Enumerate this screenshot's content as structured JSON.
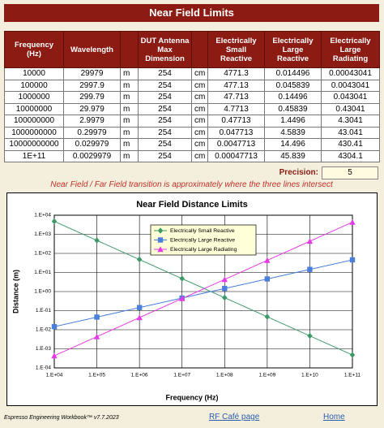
{
  "header": {
    "title": "Near Field Limits"
  },
  "table": {
    "columns": [
      "Frequency (Hz)",
      "Wavelength",
      "",
      "DUT Antenna Max Dimension",
      "",
      "Electrically Small Reactive",
      "Electrically Large Reactive",
      "Electrically Large Radiating"
    ],
    "rows": [
      [
        "10000",
        "29979",
        "m",
        "254",
        "cm",
        "4771.3",
        "0.014496",
        "0.00043041"
      ],
      [
        "100000",
        "2997.9",
        "m",
        "254",
        "cm",
        "477.13",
        "0.045839",
        "0.0043041"
      ],
      [
        "1000000",
        "299.79",
        "m",
        "254",
        "cm",
        "47.713",
        "0.14496",
        "0.043041"
      ],
      [
        "10000000",
        "29.979",
        "m",
        "254",
        "cm",
        "4.7713",
        "0.45839",
        "0.43041"
      ],
      [
        "100000000",
        "2.9979",
        "m",
        "254",
        "cm",
        "0.47713",
        "1.4496",
        "4.3041"
      ],
      [
        "1000000000",
        "0.29979",
        "m",
        "254",
        "cm",
        "0.047713",
        "4.5839",
        "43.041"
      ],
      [
        "10000000000",
        "0.029979",
        "m",
        "254",
        "cm",
        "0.0047713",
        "14.496",
        "430.41"
      ],
      [
        "1E+11",
        "0.0029979",
        "m",
        "254",
        "cm",
        "0.00047713",
        "45.839",
        "4304.1"
      ]
    ]
  },
  "precision": {
    "label": "Precision:",
    "value": "5"
  },
  "note": "Near Field / Far Field transition is approximately where the three lines intersect",
  "chart_data": {
    "type": "line",
    "title": "Near Field Distance Limits",
    "xlabel": "Frequency (Hz)",
    "ylabel": "Distance (m)",
    "x": [
      10000,
      100000,
      1000000,
      10000000,
      100000000,
      1000000000,
      10000000000,
      100000000000
    ],
    "xlim": [
      10000,
      100000000000
    ],
    "ylim": [
      0.0001,
      10000
    ],
    "xscale": "log",
    "yscale": "log",
    "grid": true,
    "legend": "upper center",
    "xticks": [
      {
        "value": 10000,
        "label": "1.E+04"
      },
      {
        "value": 100000,
        "label": "1.E+05"
      },
      {
        "value": 1000000,
        "label": "1.E+06"
      },
      {
        "value": 10000000,
        "label": "1.E+07"
      },
      {
        "value": 100000000,
        "label": "1.E+08"
      },
      {
        "value": 1000000000,
        "label": "1.E+09"
      },
      {
        "value": 10000000000,
        "label": "1.E+10"
      },
      {
        "value": 100000000000,
        "label": "1.E+11"
      }
    ],
    "yticks": [
      {
        "value": 0.0001,
        "label": "1.E-04"
      },
      {
        "value": 0.001,
        "label": "1.E-03"
      },
      {
        "value": 0.01,
        "label": "1.E-02"
      },
      {
        "value": 0.1,
        "label": "1.E-01"
      },
      {
        "value": 1,
        "label": "1.E+00"
      },
      {
        "value": 10,
        "label": "1.E+01"
      },
      {
        "value": 100,
        "label": "1.E+02"
      },
      {
        "value": 1000,
        "label": "1.E+03"
      },
      {
        "value": 10000,
        "label": "1.E+04"
      }
    ],
    "series": [
      {
        "name": "Electrically Small Reactive",
        "color": "#3d9a68",
        "marker": "diamond",
        "values": [
          4771.3,
          477.13,
          47.713,
          4.7713,
          0.47713,
          0.047713,
          0.0047713,
          0.00047713
        ]
      },
      {
        "name": "Electrically Large Reactive",
        "color": "#4a7fdc",
        "marker": "square",
        "values": [
          0.014496,
          0.045839,
          0.14496,
          0.45839,
          1.4496,
          4.5839,
          14.496,
          45.839
        ]
      },
      {
        "name": "Electrically Large Radiating",
        "color": "#e53ae5",
        "marker": "triangle",
        "values": [
          0.00043041,
          0.0043041,
          0.043041,
          0.43041,
          4.3041,
          43.041,
          430.41,
          4304.1
        ]
      }
    ]
  },
  "footer": {
    "credit": "Espresso Engineering Workbook™  v7.7.2023",
    "link1": "RF Café page",
    "link2": "Home"
  }
}
